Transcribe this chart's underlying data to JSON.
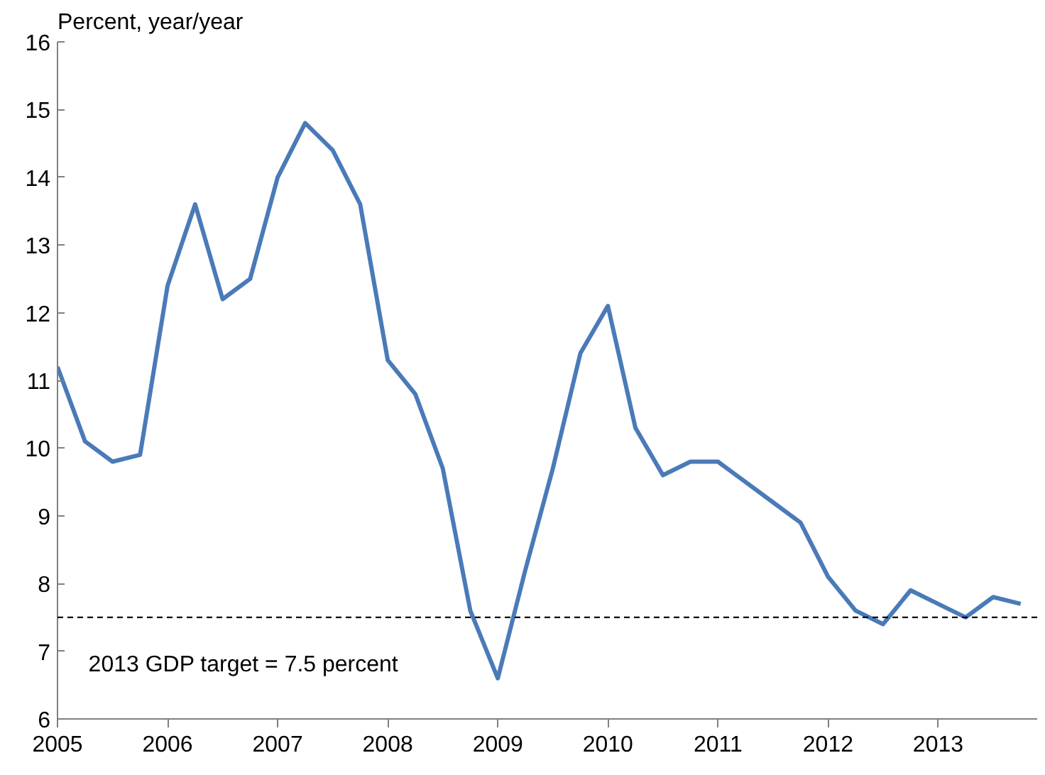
{
  "chart_data": {
    "type": "line",
    "ylabel": "Percent, year/year",
    "x": [
      2005,
      2005.25,
      2005.5,
      2005.75,
      2006,
      2006.25,
      2006.5,
      2006.75,
      2007,
      2007.25,
      2007.5,
      2007.75,
      2008,
      2008.25,
      2008.5,
      2008.75,
      2009,
      2009.25,
      2009.5,
      2009.75,
      2010,
      2010.25,
      2010.5,
      2010.75,
      2011,
      2011.25,
      2011.5,
      2011.75,
      2012,
      2012.25,
      2012.5,
      2012.75,
      2013,
      2013.25,
      2013.5,
      2013.75
    ],
    "series": [
      {
        "color": "#4a7ab8",
        "values": [
          11.2,
          10.1,
          9.8,
          9.9,
          12.4,
          13.6,
          12.2,
          12.5,
          14.0,
          14.8,
          14.4,
          13.6,
          11.3,
          10.8,
          9.7,
          7.6,
          6.6,
          8.2,
          9.7,
          11.4,
          12.1,
          10.3,
          9.6,
          9.8,
          9.8,
          9.5,
          9.2,
          8.9,
          8.1,
          7.6,
          7.4,
          7.9,
          7.7,
          7.5,
          7.8,
          7.7
        ]
      }
    ],
    "xlim": [
      2005,
      2013.9
    ],
    "xticks": [
      2005,
      2006,
      2007,
      2008,
      2009,
      2010,
      2011,
      2012,
      2013
    ],
    "ylim": [
      6,
      16
    ],
    "yticks": [
      6,
      7,
      8,
      9,
      10,
      11,
      12,
      13,
      14,
      15,
      16
    ],
    "ref_lines": [
      {
        "axis": "y",
        "value": 7.5,
        "label": "2013 GDP target = 7.5 percent",
        "color": "#000000",
        "line_style": "dashed"
      }
    ],
    "grid": false,
    "marker": "none",
    "line_style": "solid"
  }
}
